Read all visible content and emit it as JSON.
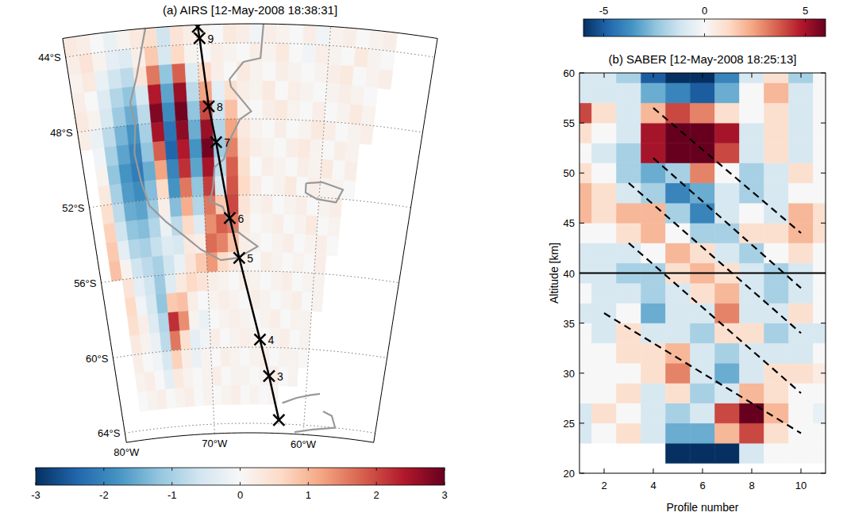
{
  "chart_data": [
    {
      "type": "map",
      "title": "(a) AIRS [12-May-2008 18:38:31]",
      "xlim": [
        -80,
        -52
      ],
      "ylim": [
        -64.5,
        -43
      ],
      "xticks": [
        {
          "value": -80,
          "label": "80°W"
        },
        {
          "value": -70,
          "label": "70°W"
        },
        {
          "value": -60,
          "label": "60°W"
        }
      ],
      "yticks": [
        {
          "value": -44,
          "label": "44°S"
        },
        {
          "value": -48,
          "label": "48°S"
        },
        {
          "value": -52,
          "label": "52°S"
        },
        {
          "value": -56,
          "label": "56°S"
        },
        {
          "value": -60,
          "label": "60°S"
        },
        {
          "value": -64,
          "label": "64°S"
        }
      ],
      "grid": true,
      "x": [
        -79.5,
        -78.5,
        -77.5,
        -76.5,
        -75.5,
        -74.5,
        -73.5,
        -72.5,
        -71.5,
        -70.5,
        -69.5,
        -68.5,
        -67.5,
        -66.5,
        -65.5,
        -64.5,
        -63.5,
        -62.5,
        -61.5,
        -60.5,
        -59.5,
        -58.5,
        -57.5,
        -56.5,
        -55.5,
        -54.5
      ],
      "y": [
        -43.5,
        -44.5,
        -45.5,
        -46.5,
        -47.5,
        -48.5,
        -49.5,
        -50.5,
        -51.5,
        -52.5,
        -53.5,
        -54.5,
        -55.5,
        -56.5,
        -57.5,
        -58.5,
        -59.5,
        -60.5,
        -61.5,
        -62.5
      ],
      "values": [
        [
          0.3,
          0.2,
          0,
          -0.2,
          0.1,
          0.3,
          0.5,
          -0.6,
          0.4,
          0.2,
          0.1,
          0,
          0.3,
          0.2,
          -0.1,
          0.2,
          0.1,
          0,
          0.2,
          -0.1,
          0.1,
          0.2,
          0,
          0.1,
          0.2,
          null
        ],
        [
          0.2,
          0.4,
          0.1,
          -0.3,
          -0.4,
          0.2,
          0.8,
          -0.5,
          0.6,
          0.1,
          0,
          0.2,
          0.1,
          0,
          0.2,
          0.1,
          0.3,
          0,
          -0.1,
          0.2,
          0.1,
          0,
          0.3,
          0.1,
          0,
          null
        ],
        [
          0.1,
          0.3,
          -0.2,
          -0.6,
          -0.8,
          0.4,
          1.6,
          -1.2,
          1.8,
          -0.4,
          0.6,
          0.2,
          0,
          0.3,
          0.1,
          0,
          0.2,
          0.1,
          0,
          0.1,
          0.2,
          0.3,
          0,
          0.1,
          0.2,
          null
        ],
        [
          0.2,
          0,
          -0.4,
          -0.9,
          -1.2,
          -0.5,
          2.4,
          -1.6,
          2.6,
          -0.8,
          1.2,
          -0.3,
          0.5,
          0.2,
          0.1,
          0.3,
          0,
          0.2,
          0.1,
          0,
          0.1,
          0.2,
          0.1,
          0,
          null,
          null
        ],
        [
          0.3,
          0.1,
          -0.5,
          -1.1,
          -1.5,
          -0.8,
          2.8,
          -1.9,
          2.9,
          -1.2,
          2.0,
          -0.6,
          0.9,
          0.1,
          0,
          0.2,
          0.3,
          0.1,
          0,
          0.2,
          0,
          0.1,
          0.3,
          0.1,
          null,
          null
        ],
        [
          0.2,
          -0.2,
          -0.8,
          -1.4,
          -1.8,
          -1.0,
          2.5,
          -2.2,
          2.7,
          -1.5,
          2.6,
          -0.9,
          1.2,
          0.3,
          0.1,
          0,
          0.2,
          0,
          0.1,
          0.3,
          0.2,
          0,
          0.1,
          0.2,
          null,
          null
        ],
        [
          null,
          -0.1,
          -1.0,
          -1.6,
          -2.0,
          -1.2,
          1.8,
          -2.4,
          2.4,
          -1.8,
          2.9,
          -1.1,
          1.5,
          0.4,
          0.2,
          0.1,
          0,
          0.2,
          0.3,
          0.1,
          0,
          0.2,
          0.1,
          null,
          null,
          null
        ],
        [
          null,
          0.1,
          -1.2,
          -1.8,
          -2.1,
          -1.5,
          1.2,
          -2.0,
          2.2,
          -1.6,
          2.5,
          -0.8,
          1.8,
          0.5,
          0,
          0.2,
          0.1,
          0,
          0.2,
          0.1,
          0.3,
          0,
          0.2,
          null,
          null,
          null
        ],
        [
          null,
          0.3,
          -1.0,
          -1.7,
          -1.9,
          -1.3,
          0.6,
          -1.8,
          1.6,
          -1.2,
          2.1,
          -0.5,
          1.9,
          0.6,
          0.2,
          0,
          0.1,
          0.3,
          0,
          0.2,
          0.1,
          0.1,
          0,
          null,
          null,
          null
        ],
        [
          null,
          0.5,
          -0.8,
          -1.5,
          -1.6,
          -1.1,
          0.2,
          -1.3,
          1.1,
          -0.9,
          1.6,
          0.8,
          2.0,
          0.4,
          0.1,
          0.2,
          0,
          0.1,
          0.2,
          0,
          0.1,
          0.2,
          null,
          null,
          null,
          null
        ],
        [
          null,
          0.7,
          -0.6,
          -1.2,
          -1.3,
          -0.9,
          -0.2,
          -0.8,
          0.6,
          -0.4,
          1.4,
          1.8,
          1.6,
          0.3,
          0,
          0.1,
          0.2,
          0,
          0.1,
          0.3,
          0,
          0.1,
          null,
          null,
          null,
          null
        ],
        [
          null,
          0.8,
          -0.3,
          -0.9,
          -1.0,
          -0.7,
          -0.4,
          -0.5,
          0.3,
          0.2,
          1.7,
          1.5,
          0.9,
          0.2,
          0.1,
          0,
          0.1,
          0.2,
          0,
          0.1,
          0.2,
          0,
          null,
          null,
          null,
          null
        ],
        [
          null,
          0.9,
          0.1,
          -0.6,
          -0.8,
          -1.0,
          -0.6,
          -0.2,
          0.4,
          0.8,
          1.3,
          0.6,
          0.3,
          0.1,
          0,
          0.2,
          0.1,
          0,
          0.1,
          0,
          0.2,
          null,
          null,
          null,
          null,
          null
        ],
        [
          null,
          null,
          0.4,
          -0.3,
          -0.6,
          -1.1,
          -0.4,
          0.3,
          0.6,
          0.4,
          0.2,
          0.1,
          0,
          0.2,
          0.1,
          0,
          0.1,
          0.2,
          0,
          0.1,
          0.1,
          null,
          null,
          null,
          null,
          null
        ],
        [
          null,
          null,
          0.6,
          -0.1,
          -0.5,
          -1.2,
          0.8,
          0.9,
          0.2,
          0,
          0.1,
          0.2,
          0.1,
          0,
          0.2,
          0.1,
          0,
          0.1,
          0.2,
          0,
          0.1,
          null,
          null,
          null,
          null,
          null
        ],
        [
          null,
          null,
          0.5,
          0.2,
          -0.4,
          -0.9,
          2.2,
          1.4,
          0.1,
          -0.2,
          0,
          0.1,
          0.2,
          0.1,
          0,
          0.1,
          0.2,
          0,
          0.1,
          0.1,
          null,
          null,
          null,
          null,
          null,
          null
        ],
        [
          null,
          null,
          0.3,
          0.1,
          -0.2,
          -0.8,
          1.6,
          0.5,
          -0.3,
          -0.1,
          0.2,
          0,
          0.1,
          0.2,
          0.1,
          0,
          0.1,
          0.2,
          0,
          0.1,
          null,
          null,
          null,
          null,
          null,
          null
        ],
        [
          null,
          null,
          0.2,
          0,
          -0.1,
          -0.5,
          0.7,
          0.2,
          -0.2,
          0.1,
          0,
          0.2,
          0.1,
          0,
          0.1,
          0.2,
          0,
          0.1,
          0.1,
          0,
          null,
          null,
          null,
          null,
          null,
          null
        ],
        [
          null,
          null,
          0.1,
          0.2,
          0,
          -0.3,
          0.3,
          0.1,
          0,
          0.1,
          0.2,
          0,
          0.1,
          0.1,
          0,
          0.1,
          0.2,
          0,
          0.1,
          null,
          null,
          null,
          null,
          null,
          null,
          null
        ],
        [
          null,
          null,
          0,
          0.1,
          0.2,
          0,
          0.1,
          0.2,
          0,
          0.1,
          0,
          0.1,
          0.2,
          0,
          0.1,
          0,
          0.1,
          null,
          null,
          null,
          null,
          null,
          null,
          null,
          null,
          null
        ]
      ],
      "colorbar": {
        "range": [
          -3,
          3
        ],
        "ticks": [
          -3,
          -2,
          -1,
          0,
          1,
          2,
          3
        ]
      },
      "track": {
        "lat": [
          -43.1,
          -43.7,
          -47.3,
          -49.2,
          -53.2,
          -55.3,
          -59.6,
          -61.5,
          -63.8
        ],
        "lon": [
          -69.9,
          -69.8,
          -69.3,
          -68.8,
          -67.8,
          -67.0,
          -65.0,
          -64.0,
          -62.8
        ],
        "labels": [
          null,
          9,
          8,
          7,
          6,
          5,
          4,
          3,
          null
        ]
      },
      "coastlines": [
        [
          [
            -73.8,
            -43
          ],
          [
            -74.2,
            -44
          ],
          [
            -74.8,
            -45.5
          ],
          [
            -75.5,
            -46.8
          ],
          [
            -75.3,
            -48
          ],
          [
            -75.6,
            -49.5
          ],
          [
            -75.3,
            -51
          ],
          [
            -74.8,
            -52.3
          ],
          [
            -73.5,
            -53.2
          ],
          [
            -72,
            -54
          ],
          [
            -70.5,
            -54.8
          ],
          [
            -68.7,
            -55.4
          ],
          [
            -67.2,
            -55.3
          ],
          [
            -66.2,
            -55
          ],
          [
            -65.3,
            -54.7
          ],
          [
            -66.5,
            -54.2
          ],
          [
            -67.8,
            -53.6
          ],
          [
            -68.4,
            -52.6
          ],
          [
            -69.5,
            -52.3
          ],
          [
            -69.2,
            -51.6
          ],
          [
            -69,
            -50.5
          ],
          [
            -68.2,
            -50.1
          ],
          [
            -67.6,
            -49
          ],
          [
            -66.8,
            -48
          ],
          [
            -65.9,
            -47.6
          ],
          [
            -67.5,
            -46.3
          ],
          [
            -67.6,
            -45.9
          ],
          [
            -66.5,
            -45
          ],
          [
            -65.2,
            -44.8
          ],
          [
            -65,
            -43
          ]
        ],
        [
          [
            -61.2,
            -51.3
          ],
          [
            -59.8,
            -51.2
          ],
          [
            -58,
            -51.5
          ],
          [
            -58.5,
            -52.2
          ],
          [
            -60.2,
            -52.1
          ],
          [
            -61.2,
            -51.8
          ],
          [
            -61.2,
            -51.3
          ]
        ],
        [
          [
            -62.5,
            -62.9
          ],
          [
            -61,
            -62.6
          ],
          [
            -59.5,
            -62.4
          ],
          [
            -58.5,
            -62.3
          ]
        ],
        [
          [
            -58,
            -63.2
          ],
          [
            -57,
            -63.4
          ],
          [
            -56.5,
            -64
          ],
          [
            -59,
            -64.2
          ],
          [
            -61,
            -64.4
          ]
        ]
      ]
    },
    {
      "type": "contour",
      "title": "(b) SABER [12-May-2008 18:25:13]",
      "xlabel": "Profile number",
      "ylabel": "Altitude [km]",
      "xlim": [
        1,
        11
      ],
      "ylim": [
        20,
        60
      ],
      "xticks": [
        2,
        4,
        6,
        8,
        10
      ],
      "yticks": [
        20,
        25,
        30,
        35,
        40,
        45,
        50,
        55,
        60
      ],
      "x": [
        1,
        2,
        3,
        4,
        5,
        6,
        7,
        8,
        9,
        10,
        11
      ],
      "y": [
        22,
        24,
        26,
        28,
        30,
        32,
        34,
        36,
        38,
        40,
        42,
        44,
        46,
        48,
        50,
        52,
        54,
        56,
        58,
        60
      ],
      "values": [
        [
          null,
          null,
          null,
          null,
          -6,
          -6,
          -6,
          -1,
          0,
          0,
          0
        ],
        [
          -1,
          0,
          1,
          -1,
          -3,
          -3,
          2,
          4,
          1,
          0,
          0
        ],
        [
          -1,
          1,
          0,
          -1,
          -2,
          -1,
          4,
          6,
          2,
          0,
          -0.5
        ],
        [
          0,
          0,
          1,
          -1,
          1,
          -2,
          -1,
          2,
          1,
          0,
          0
        ],
        [
          0,
          0,
          0,
          1,
          3,
          -1,
          -3,
          -1,
          1,
          1,
          0.5
        ],
        [
          0,
          0,
          1,
          1,
          2,
          -1,
          -2,
          -1,
          -1,
          -1,
          0
        ],
        [
          0,
          -1,
          1,
          -1,
          -1,
          -2,
          1,
          1,
          -2,
          -1,
          -1
        ],
        [
          -1,
          -1,
          0,
          -3,
          -1,
          -1,
          3,
          -1,
          -1,
          1,
          0
        ],
        [
          0,
          -1,
          -1,
          -2,
          -1,
          1,
          2,
          -1,
          -2,
          -1,
          0
        ],
        [
          -1,
          -1,
          -2,
          -2,
          1,
          2,
          1,
          -1,
          -2,
          -1,
          0
        ],
        [
          -1,
          -1,
          -1,
          0,
          2,
          1,
          -1,
          -2,
          0,
          1,
          0
        ],
        [
          0,
          0,
          1,
          2,
          0,
          -2,
          -2,
          1,
          1,
          2,
          1
        ],
        [
          2,
          1,
          2,
          2,
          -2,
          -4,
          -1,
          0,
          -1,
          2,
          1
        ],
        [
          2,
          1,
          -1,
          -2,
          -4,
          -3,
          -1,
          -2,
          -1,
          0,
          0
        ],
        [
          1,
          0,
          -2,
          -3,
          -2,
          3,
          0,
          -2,
          -1,
          1,
          0
        ],
        [
          0,
          -1,
          -2,
          5,
          6,
          6,
          4,
          -1,
          1,
          -1,
          0
        ],
        [
          1,
          0,
          -1,
          5,
          6,
          6,
          5,
          -1,
          1,
          -1,
          0
        ],
        [
          4,
          1,
          -1,
          2,
          4,
          3,
          1,
          0,
          1,
          -1,
          0
        ],
        [
          -1,
          -1,
          -1,
          -3,
          -4,
          -5,
          -3,
          0,
          2,
          -1,
          0
        ],
        [
          -1,
          -1,
          -2,
          -5,
          -6,
          -6,
          -4,
          -1,
          1,
          -2,
          0
        ]
      ],
      "colorbar": {
        "range": [
          -6,
          6
        ],
        "ticks": [
          -5,
          0,
          5
        ]
      },
      "annotations": [
        {
          "x": [
            4,
            10
          ],
          "y": [
            56.5,
            44
          ],
          "line_style": "dashed"
        },
        {
          "x": [
            4,
            10
          ],
          "y": [
            51.5,
            38.5
          ],
          "line_style": "dashed"
        },
        {
          "x": [
            3,
            10
          ],
          "y": [
            49,
            34
          ],
          "line_style": "dashed"
        },
        {
          "x": [
            3,
            10
          ],
          "y": [
            43,
            28
          ],
          "line_style": "dashed"
        },
        {
          "x": [
            2,
            10
          ],
          "y": [
            36,
            24
          ],
          "line_style": "dashed"
        },
        {
          "x": [
            1,
            11
          ],
          "y": [
            40,
            40
          ],
          "line_style": "solid"
        }
      ]
    }
  ]
}
